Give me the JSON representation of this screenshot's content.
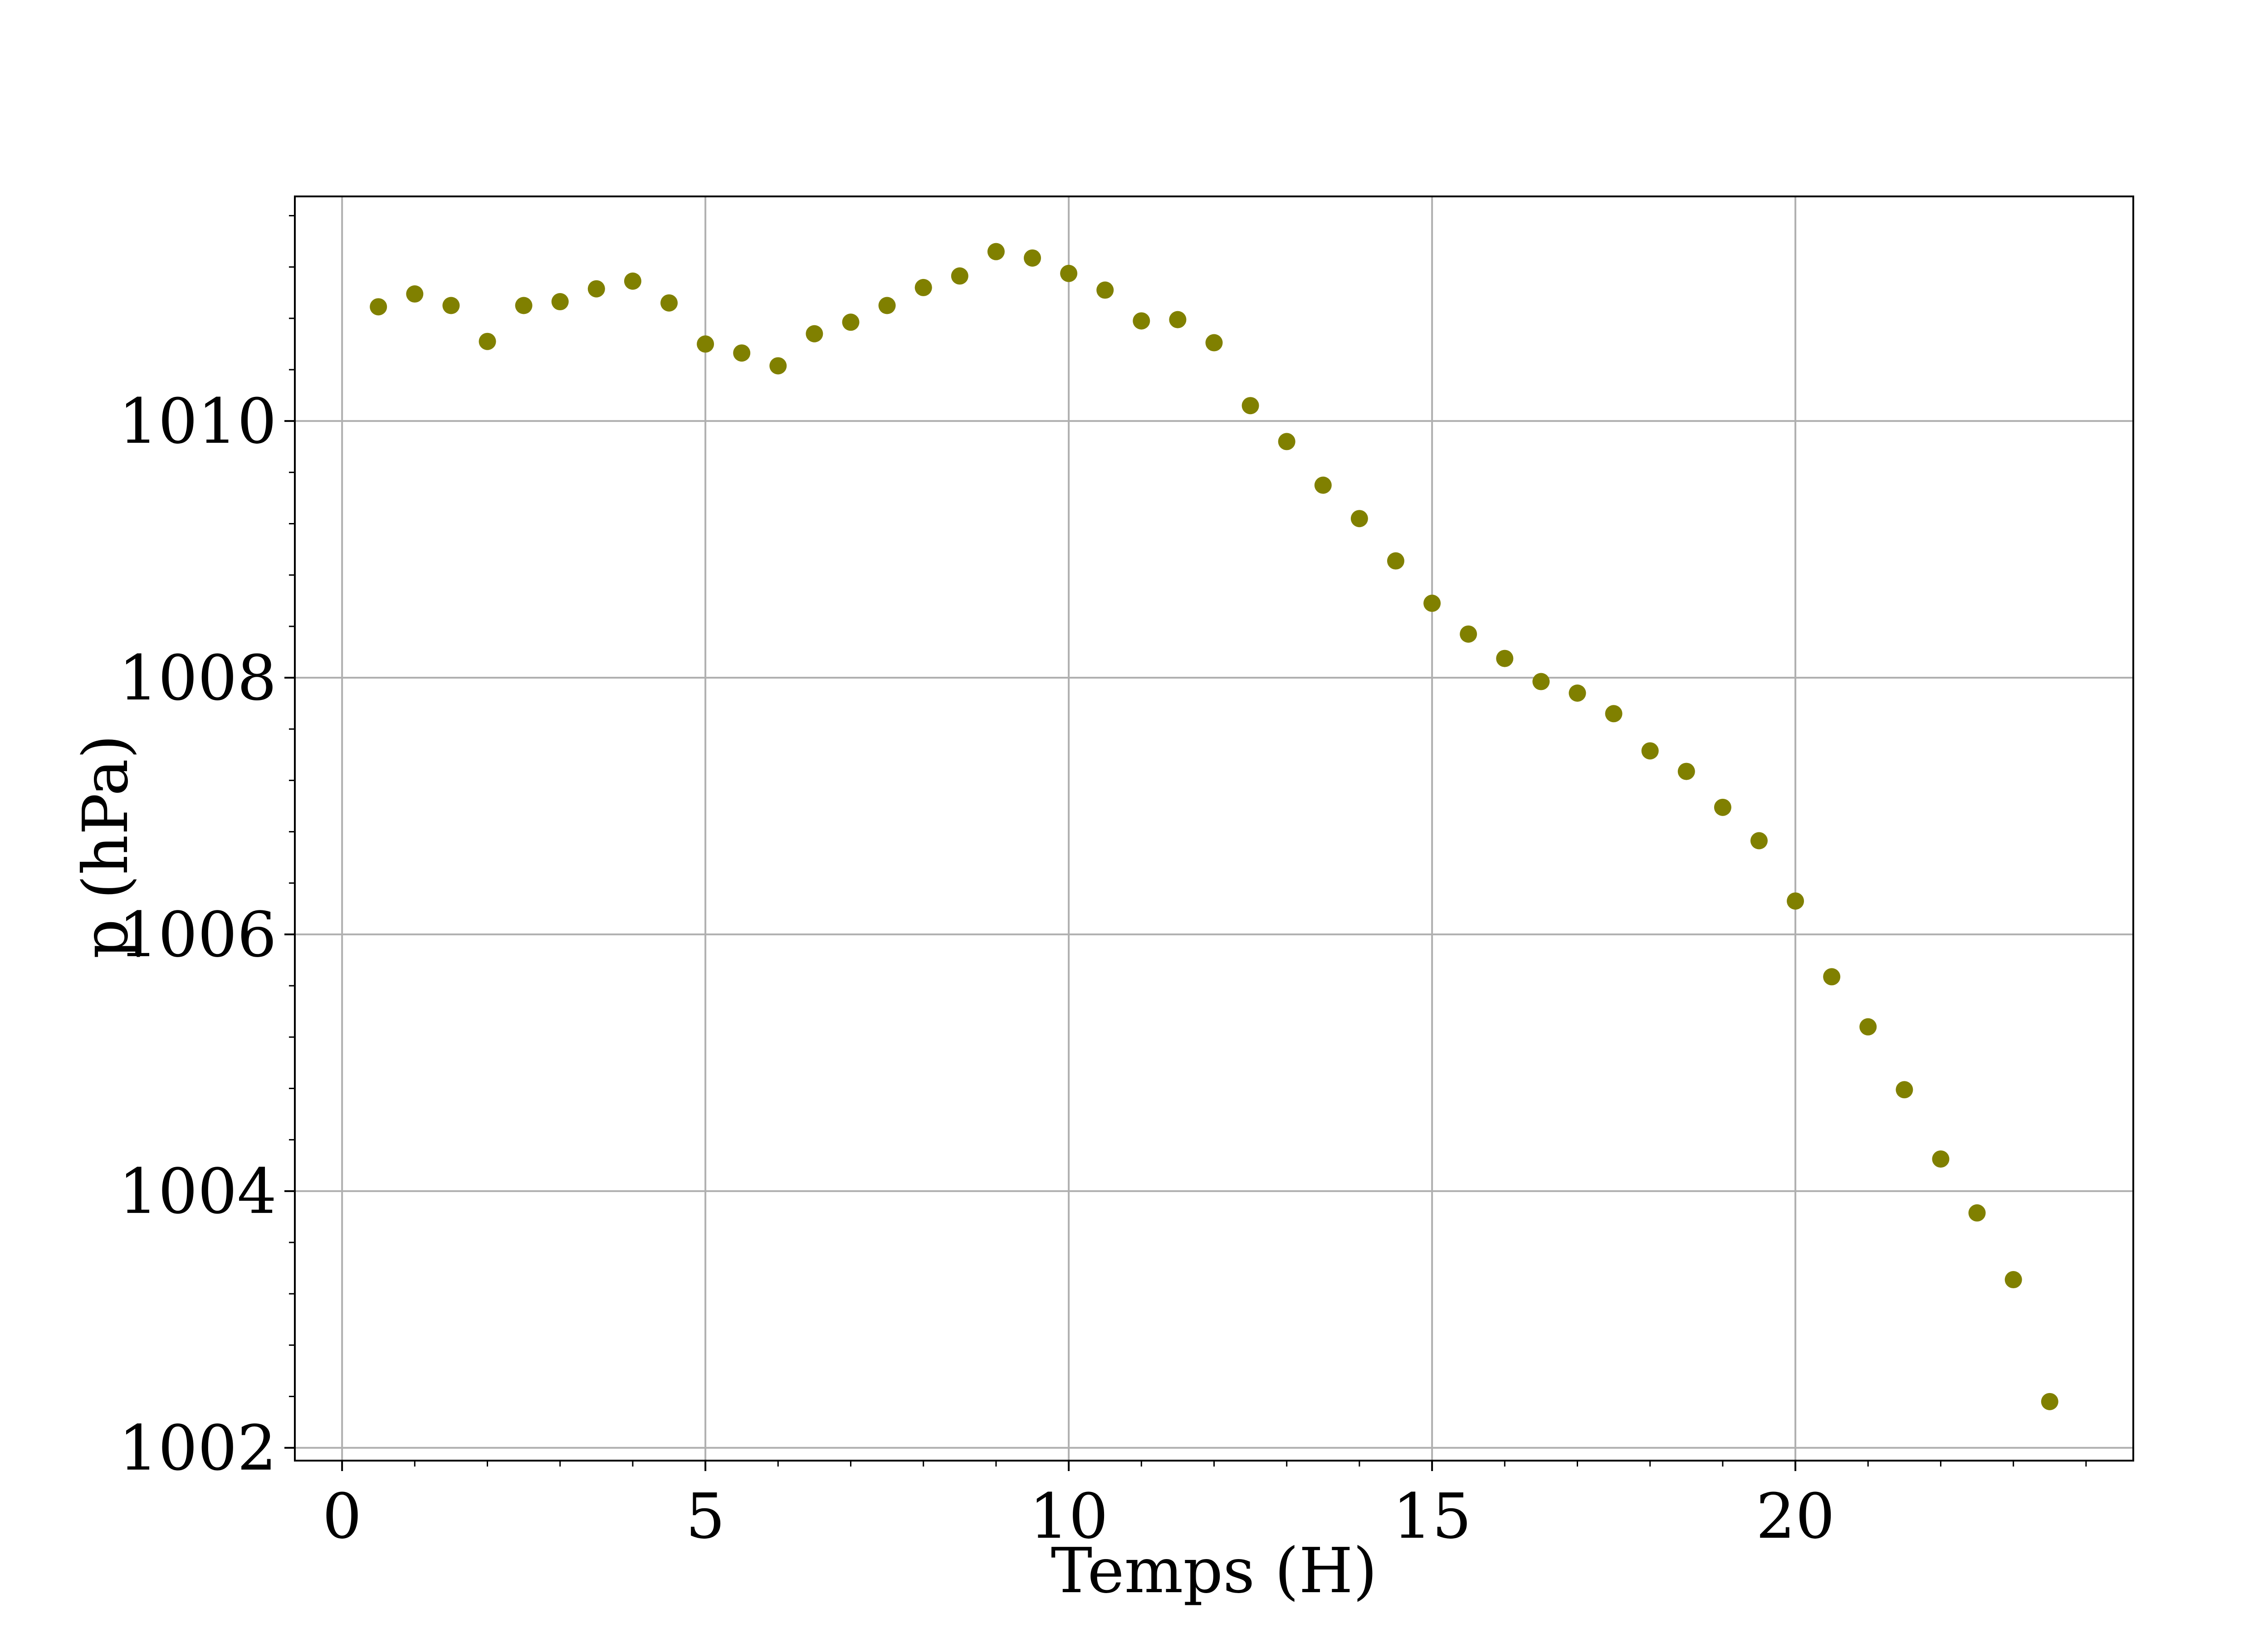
{
  "chart_data": {
    "type": "scatter",
    "xlabel": "Temps (H)",
    "ylabel": "p (hPa)",
    "xlim": [
      -0.65,
      24.65
    ],
    "ylim": [
      1001.9,
      1011.75
    ],
    "xticks": [
      0,
      5,
      10,
      15,
      20
    ],
    "yticks": [
      1002,
      1004,
      1006,
      1008,
      1010
    ],
    "x_minor_tick_step": 1,
    "y_minor_tick_step": 0.4,
    "grid": true,
    "marker_color": "#808000",
    "series": [
      {
        "x": [
          0.5,
          1.0,
          1.5,
          2.0,
          2.5,
          3.0,
          3.5,
          4.0,
          4.5,
          5.0,
          5.5,
          6.0,
          6.5,
          7.0,
          7.5,
          8.0,
          8.5,
          9.0,
          9.5,
          10.0,
          10.5,
          11.0,
          11.5,
          12.0,
          12.5,
          13.0,
          13.5,
          14.0,
          14.5,
          15.0,
          15.5,
          16.0,
          16.5,
          17.0,
          17.5,
          18.0,
          18.5,
          19.0,
          19.5,
          20.0,
          20.5,
          21.0,
          21.5,
          22.0,
          22.5,
          23.0,
          23.5
        ],
        "y": [
          1010.89,
          1010.99,
          1010.9,
          1010.62,
          1010.9,
          1010.93,
          1011.03,
          1011.09,
          1010.92,
          1010.6,
          1010.53,
          1010.43,
          1010.68,
          1010.77,
          1010.9,
          1011.04,
          1011.13,
          1011.32,
          1011.27,
          1011.15,
          1011.02,
          1010.78,
          1010.79,
          1010.61,
          1010.12,
          1009.84,
          1009.5,
          1009.24,
          1008.91,
          1008.58,
          1008.34,
          1008.15,
          1007.97,
          1007.88,
          1007.72,
          1007.43,
          1007.27,
          1006.99,
          1006.73,
          1006.26,
          1005.67,
          1005.28,
          1004.79,
          1004.25,
          1003.83,
          1003.31,
          1002.36
        ]
      }
    ]
  }
}
